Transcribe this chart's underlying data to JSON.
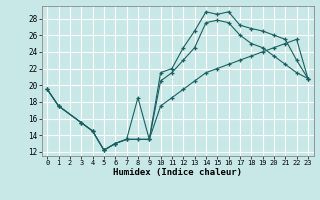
{
  "xlabel": "Humidex (Indice chaleur)",
  "xlim": [
    -0.5,
    23.5
  ],
  "ylim": [
    11.5,
    29.5
  ],
  "xticks": [
    0,
    1,
    2,
    3,
    4,
    5,
    6,
    7,
    8,
    9,
    10,
    11,
    12,
    13,
    14,
    15,
    16,
    17,
    18,
    19,
    20,
    21,
    22,
    23
  ],
  "yticks": [
    12,
    14,
    16,
    18,
    20,
    22,
    24,
    26,
    28
  ],
  "bg_color": "#c8e8e8",
  "grid_color": "#ffffff",
  "line_color": "#1a6060",
  "line1_x": [
    0,
    1,
    3,
    4,
    5,
    6,
    7,
    8,
    9,
    10,
    11,
    12,
    13,
    14,
    15,
    16,
    17,
    18,
    19,
    20,
    21,
    22,
    23
  ],
  "line1_y": [
    19.5,
    17.5,
    15.5,
    14.5,
    12.2,
    13.0,
    13.5,
    18.5,
    13.5,
    21.5,
    22.0,
    24.5,
    26.5,
    28.8,
    28.5,
    28.8,
    27.2,
    26.8,
    26.5,
    26.0,
    25.5,
    23.0,
    20.8
  ],
  "line2_x": [
    0,
    1,
    3,
    4,
    5,
    6,
    7,
    8,
    9,
    10,
    11,
    12,
    13,
    14,
    15,
    16,
    17,
    18,
    19,
    20,
    21,
    22,
    23
  ],
  "line2_y": [
    19.5,
    17.5,
    15.5,
    14.5,
    12.2,
    13.0,
    13.5,
    13.5,
    13.5,
    20.5,
    21.5,
    23.0,
    24.5,
    27.5,
    27.8,
    27.5,
    26.0,
    25.0,
    24.5,
    23.5,
    22.5,
    21.5,
    20.8
  ],
  "line3_x": [
    0,
    1,
    3,
    4,
    5,
    6,
    7,
    8,
    9,
    10,
    11,
    12,
    13,
    14,
    15,
    16,
    17,
    18,
    19,
    20,
    21,
    22,
    23
  ],
  "line3_y": [
    19.5,
    17.5,
    15.5,
    14.5,
    12.2,
    13.0,
    13.5,
    13.5,
    13.5,
    17.5,
    18.5,
    19.5,
    20.5,
    21.5,
    22.0,
    22.5,
    23.0,
    23.5,
    24.0,
    24.5,
    25.0,
    25.5,
    20.8
  ]
}
